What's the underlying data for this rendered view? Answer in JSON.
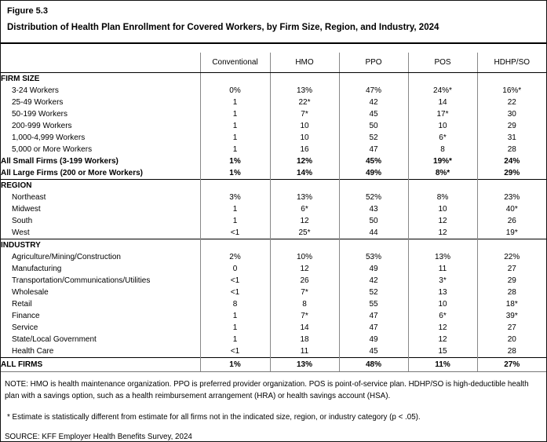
{
  "figure_label": "Figure 5.3",
  "title": "Distribution of Health Plan Enrollment for Covered Workers, by Firm Size, Region, and Industry, 2024",
  "table": {
    "columns": [
      "Conventional",
      "HMO",
      "PPO",
      "POS",
      "HDHP/SO"
    ],
    "rows": [
      {
        "label": "FIRM SIZE",
        "type": "section",
        "values": [
          "",
          "",
          "",
          "",
          ""
        ]
      },
      {
        "label": "3-24 Workers",
        "type": "data",
        "values": [
          "0%",
          "13%",
          "47%",
          "24%*",
          "16%*"
        ]
      },
      {
        "label": "25-49 Workers",
        "type": "data",
        "values": [
          "1",
          "22*",
          "42",
          "14",
          "22"
        ]
      },
      {
        "label": "50-199 Workers",
        "type": "data",
        "values": [
          "1",
          "7*",
          "45",
          "17*",
          "30"
        ]
      },
      {
        "label": "200-999 Workers",
        "type": "data",
        "values": [
          "1",
          "10",
          "50",
          "10",
          "29"
        ]
      },
      {
        "label": "1,000-4,999 Workers",
        "type": "data",
        "values": [
          "1",
          "10",
          "52",
          "6*",
          "31"
        ]
      },
      {
        "label": "5,000 or More Workers",
        "type": "data",
        "values": [
          "1",
          "16",
          "47",
          "8",
          "28"
        ]
      },
      {
        "label": "All Small Firms (3-199 Workers)",
        "type": "total",
        "values": [
          "1%",
          "12%",
          "45%",
          "19%*",
          "24%"
        ]
      },
      {
        "label": "All Large Firms (200 or More Workers)",
        "type": "total",
        "values": [
          "1%",
          "14%",
          "49%",
          "8%*",
          "29%"
        ]
      },
      {
        "label": "REGION",
        "type": "section",
        "values": [
          "",
          "",
          "",
          "",
          ""
        ]
      },
      {
        "label": "Northeast",
        "type": "data",
        "values": [
          "3%",
          "13%",
          "52%",
          "8%",
          "23%"
        ]
      },
      {
        "label": "Midwest",
        "type": "data",
        "values": [
          "1",
          "6*",
          "43",
          "10",
          "40*"
        ]
      },
      {
        "label": "South",
        "type": "data",
        "values": [
          "1",
          "12",
          "50",
          "12",
          "26"
        ]
      },
      {
        "label": "West",
        "type": "data",
        "values": [
          "<1",
          "25*",
          "44",
          "12",
          "19*"
        ]
      },
      {
        "label": "INDUSTRY",
        "type": "section",
        "values": [
          "",
          "",
          "",
          "",
          ""
        ]
      },
      {
        "label": "Agriculture/Mining/Construction",
        "type": "data",
        "values": [
          "2%",
          "10%",
          "53%",
          "13%",
          "22%"
        ]
      },
      {
        "label": "Manufacturing",
        "type": "data",
        "values": [
          "0",
          "12",
          "49",
          "11",
          "27"
        ]
      },
      {
        "label": "Transportation/Communications/Utilities",
        "type": "data",
        "values": [
          "<1",
          "26",
          "42",
          "3*",
          "29"
        ]
      },
      {
        "label": "Wholesale",
        "type": "data",
        "values": [
          "<1",
          "7*",
          "52",
          "13",
          "28"
        ]
      },
      {
        "label": "Retail",
        "type": "data",
        "values": [
          "8",
          "8",
          "55",
          "10",
          "18*"
        ]
      },
      {
        "label": "Finance",
        "type": "data",
        "values": [
          "1",
          "7*",
          "47",
          "6*",
          "39*"
        ]
      },
      {
        "label": "Service",
        "type": "data",
        "values": [
          "1",
          "14",
          "47",
          "12",
          "27"
        ]
      },
      {
        "label": "State/Local Government",
        "type": "data",
        "values": [
          "1",
          "18",
          "49",
          "12",
          "20"
        ]
      },
      {
        "label": "Health Care",
        "type": "data",
        "values": [
          "<1",
          "11",
          "45",
          "15",
          "28"
        ]
      },
      {
        "label": "ALL FIRMS",
        "type": "grand",
        "values": [
          "1%",
          "13%",
          "48%",
          "11%",
          "27%"
        ]
      }
    ]
  },
  "footnotes": {
    "note": "NOTE: HMO is health maintenance organization. PPO is preferred provider organization. POS is point-of-service plan. HDHP/SO is high-deductible health plan with a savings option, such as a health reimbursement arrangement (HRA) or health savings account (HSA).",
    "estimate": "* Estimate is statistically different from estimate for all firms not in the indicated size, region, or industry category (p < .05).",
    "source": "SOURCE: KFF Employer Health Benefits Survey, 2024"
  },
  "colors": {
    "text": "#000000",
    "background": "#ffffff",
    "section_rule": "#000000",
    "column_rule": "#888888"
  }
}
